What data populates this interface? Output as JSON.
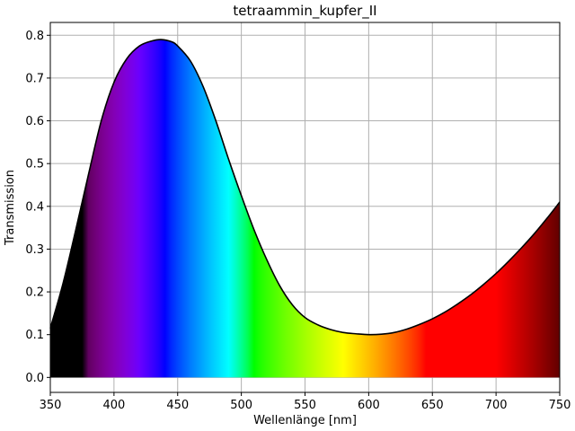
{
  "chart_data": {
    "type": "area",
    "title": "tetraammin_kupfer_II",
    "xlabel": "Wellenlänge [nm]",
    "ylabel": "Transmission",
    "xlim": [
      350,
      750
    ],
    "ylim": [
      -0.035,
      0.83
    ],
    "xticks": [
      350,
      400,
      450,
      500,
      550,
      600,
      650,
      700,
      750
    ],
    "yticks": [
      0.0,
      0.1,
      0.2,
      0.3,
      0.4,
      0.5,
      0.6,
      0.7,
      0.8
    ],
    "grid": true,
    "fill": "visible-spectrum-gradient",
    "line_color": "#000000",
    "series": [
      {
        "x": [
          350,
          360,
          370,
          380,
          390,
          400,
          410,
          420,
          430,
          437,
          445,
          450,
          460,
          470,
          480,
          490,
          500,
          510,
          520,
          530,
          540,
          550,
          560,
          570,
          580,
          590,
          600,
          610,
          620,
          630,
          640,
          650,
          660,
          670,
          680,
          690,
          700,
          710,
          720,
          730,
          740,
          750
        ],
        "y": [
          0.115,
          0.22,
          0.345,
          0.475,
          0.6,
          0.69,
          0.745,
          0.775,
          0.787,
          0.79,
          0.785,
          0.775,
          0.74,
          0.68,
          0.6,
          0.51,
          0.425,
          0.345,
          0.275,
          0.215,
          0.17,
          0.14,
          0.123,
          0.112,
          0.105,
          0.102,
          0.1,
          0.101,
          0.105,
          0.113,
          0.124,
          0.137,
          0.153,
          0.172,
          0.193,
          0.217,
          0.243,
          0.272,
          0.303,
          0.336,
          0.372,
          0.41
        ]
      }
    ]
  }
}
